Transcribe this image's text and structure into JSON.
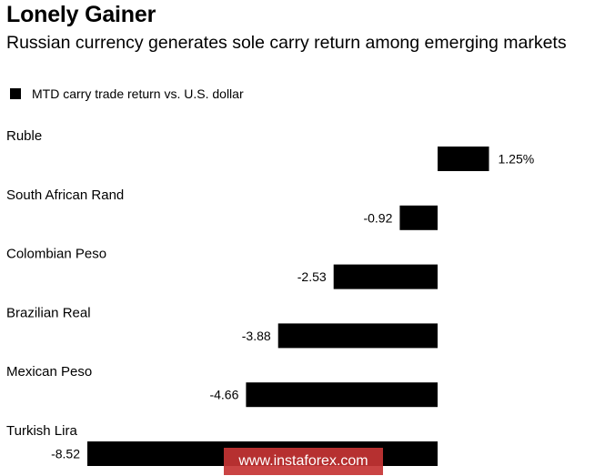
{
  "chart_data": {
    "type": "bar",
    "orientation": "horizontal",
    "title": "Lonely Gainer",
    "subtitle": "Russian currency generates sole carry return among emerging markets",
    "legend": {
      "label": "MTD carry trade return vs. U.S. dollar",
      "placement": "top-left",
      "color": "#000000"
    },
    "categories": [
      "Ruble",
      "South African Rand",
      "Colombian Peso",
      "Brazilian Real",
      "Mexican Peso",
      "Turkish Lira"
    ],
    "values": [
      1.25,
      -0.92,
      -2.53,
      -3.88,
      -4.66,
      -8.52
    ],
    "value_labels": [
      "1.25%",
      "-0.92",
      "-2.53",
      "-3.88",
      "-4.66",
      "-8.52"
    ],
    "bar_color": "#000000",
    "xlim": [
      -8.52,
      1.25
    ],
    "grid": false
  },
  "watermark": "www.instaforex.com"
}
